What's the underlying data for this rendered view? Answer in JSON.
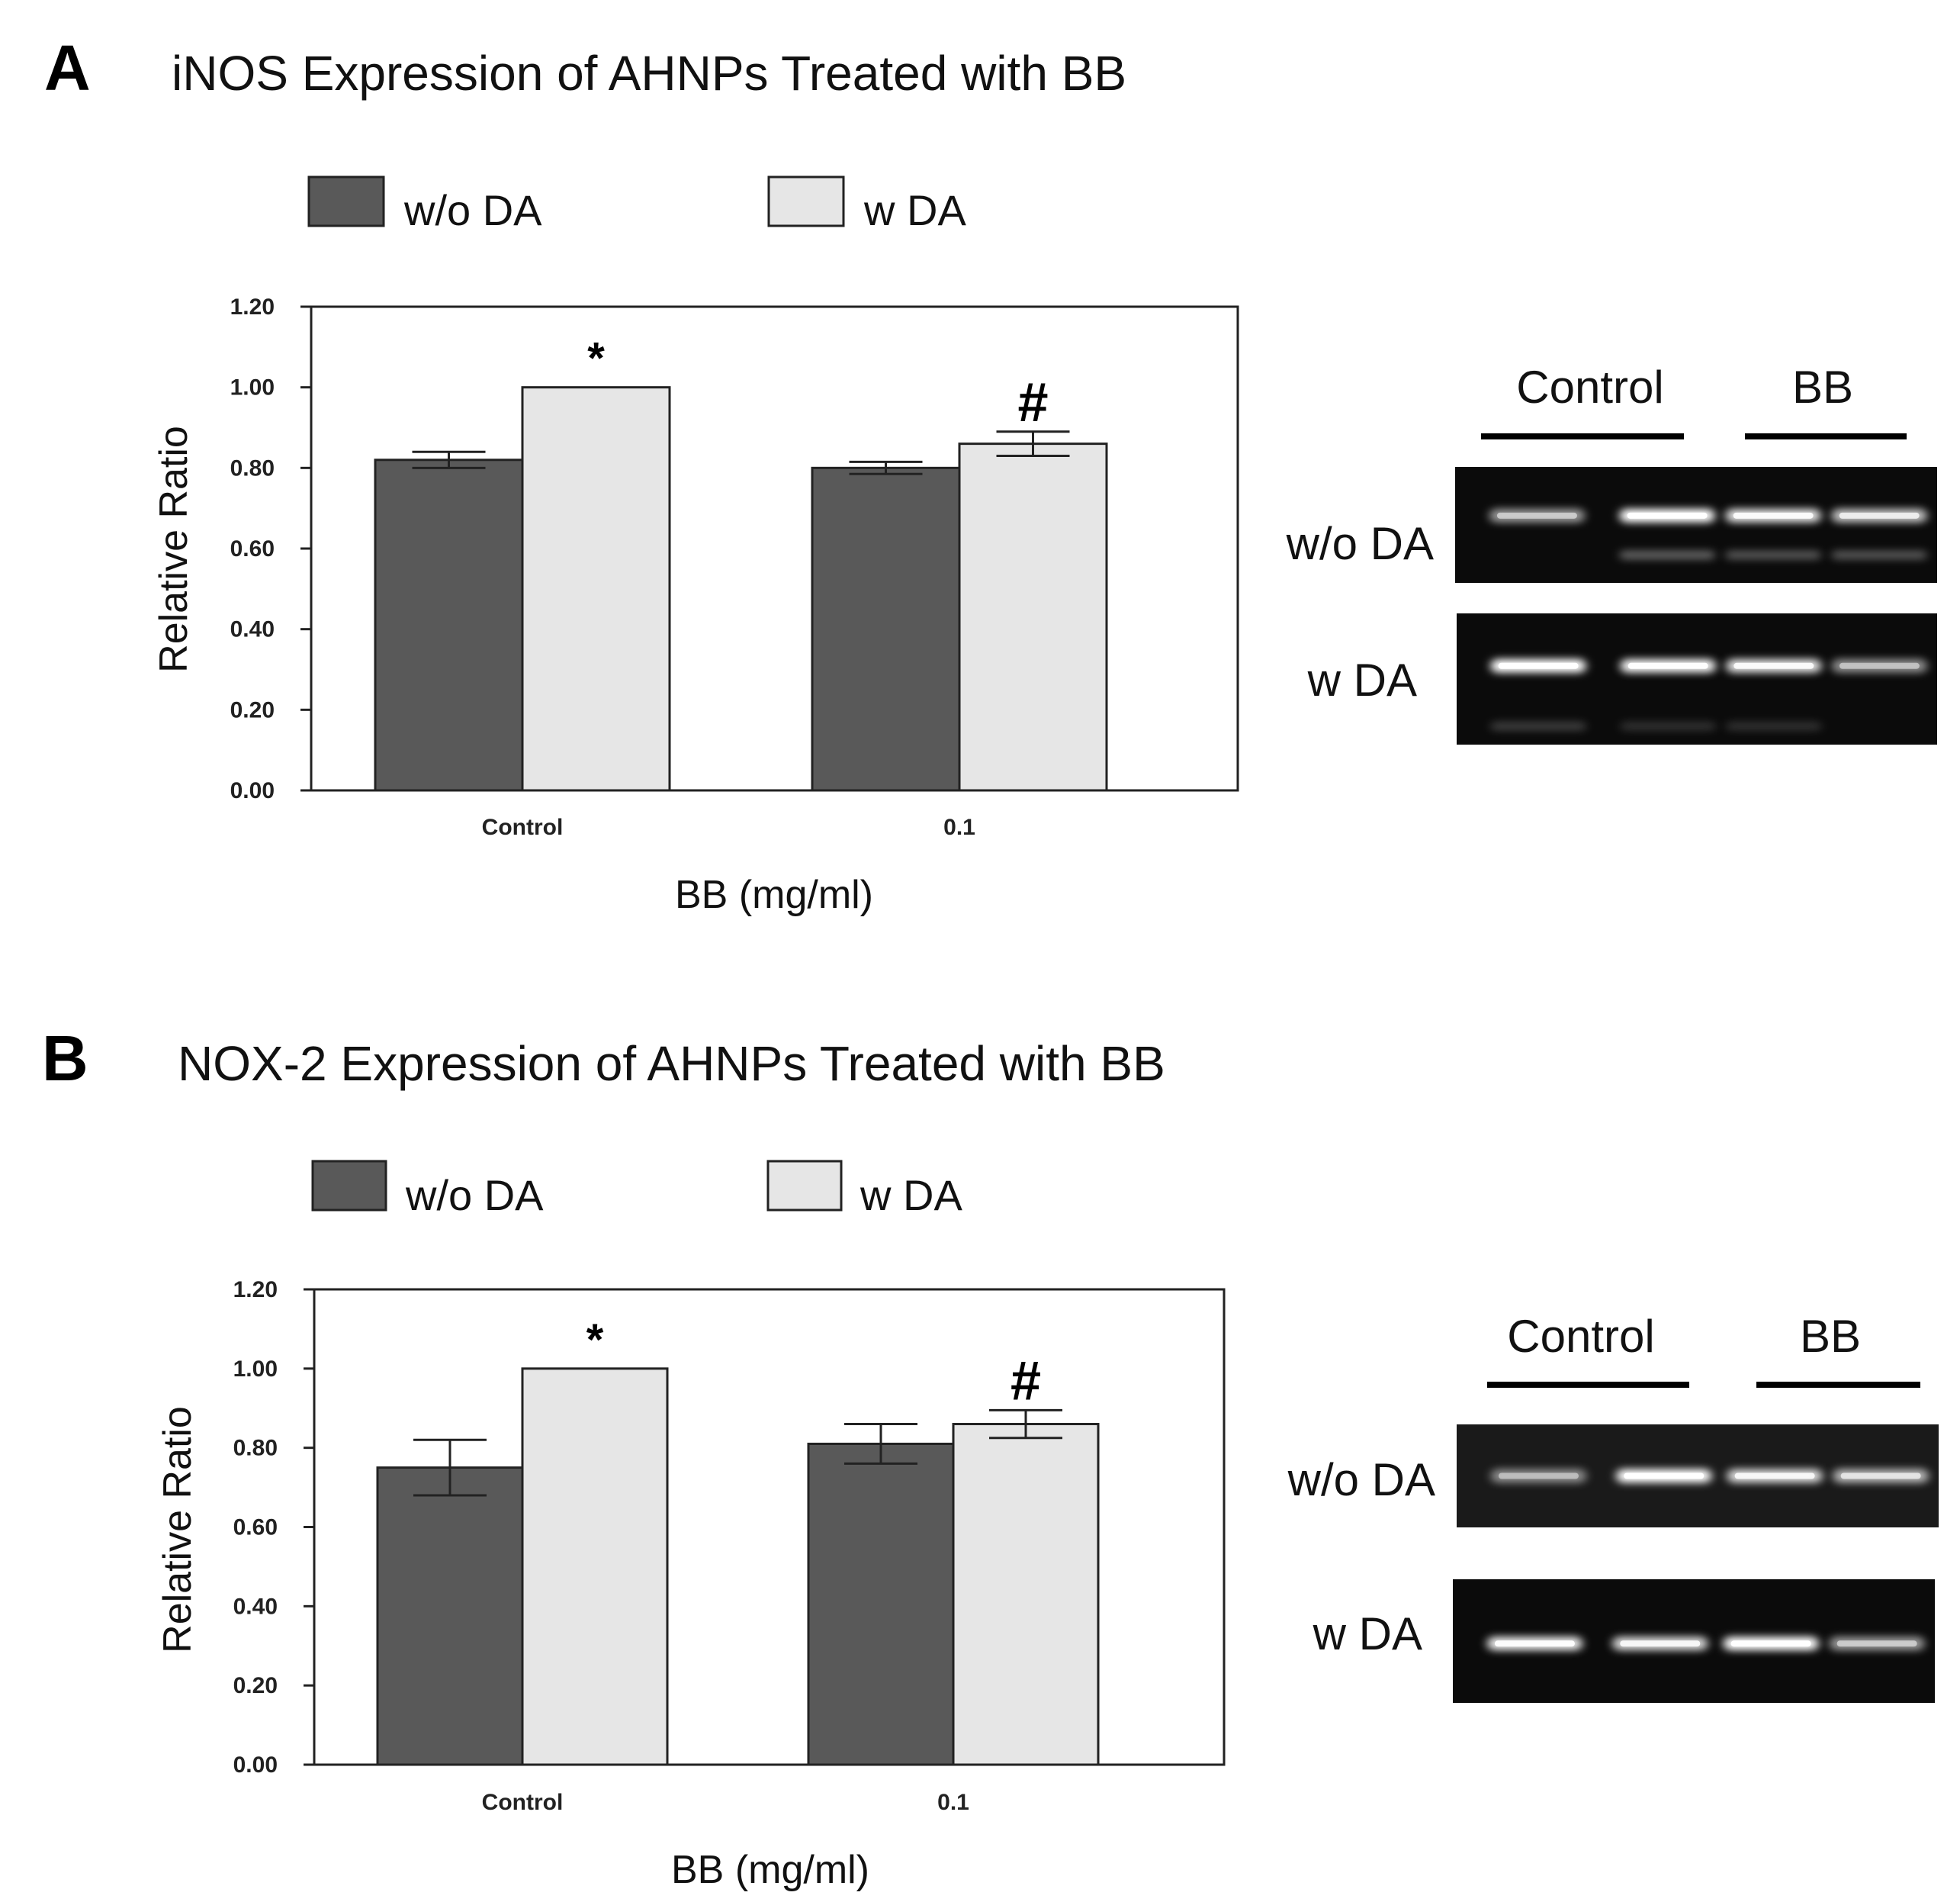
{
  "colors": {
    "without_da": "#595959",
    "with_da": "#e6e6e6",
    "axis": "#222222",
    "gel_background": "#0b0b0b",
    "gel_band": "#ffffff"
  },
  "chart_data": [
    {
      "type": "bar",
      "panel": "A",
      "title": "iNOS Expression of AHNPs Treated with BB",
      "xlabel": "BB (mg/ml)",
      "ylabel": "Relative Ratio",
      "ylim": [
        0,
        1.2
      ],
      "yticks": [
        "0.00",
        "0.20",
        "0.40",
        "0.60",
        "0.80",
        "1.00",
        "1.20"
      ],
      "ytick_values": [
        0,
        0.2,
        0.4,
        0.6,
        0.8,
        1.0,
        1.2
      ],
      "categories": [
        "Control",
        "0.1"
      ],
      "legend_position": "top",
      "grid": false,
      "series": [
        {
          "name": "w/o DA",
          "values": [
            0.82,
            0.8
          ],
          "errors": [
            0.02,
            0.015
          ],
          "marks": [
            "",
            ""
          ]
        },
        {
          "name": "w DA",
          "values": [
            1.0,
            0.86
          ],
          "errors": [
            0.0,
            0.03
          ],
          "marks": [
            "*",
            "#"
          ]
        }
      ],
      "gel": {
        "header_left": "Control",
        "header_right": "BB",
        "rows": [
          {
            "label": "w/o DA",
            "bands": [
              0.45,
              1.0,
              0.85,
              0.7
            ],
            "secondary": [
              0.0,
              0.35,
              0.3,
              0.3
            ]
          },
          {
            "label": "w DA",
            "bands": [
              1.0,
              0.95,
              0.85,
              0.4
            ],
            "secondary": [
              0.2,
              0.15,
              0.15,
              0.0
            ]
          }
        ]
      }
    },
    {
      "type": "bar",
      "panel": "B",
      "title": "NOX-2 Expression of AHNPs Treated with BB",
      "xlabel": "BB (mg/ml)",
      "ylabel": "Relative Ratio",
      "ylim": [
        0,
        1.2
      ],
      "yticks": [
        "0.00",
        "0.20",
        "0.40",
        "0.60",
        "0.80",
        "1.00",
        "1.20"
      ],
      "ytick_values": [
        0,
        0.2,
        0.4,
        0.6,
        0.8,
        1.0,
        1.2
      ],
      "categories": [
        "Control",
        "0.1"
      ],
      "legend_position": "top",
      "grid": false,
      "series": [
        {
          "name": "w/o DA",
          "values": [
            0.75,
            0.81
          ],
          "errors": [
            0.07,
            0.05
          ],
          "marks": [
            "",
            ""
          ]
        },
        {
          "name": "w DA",
          "values": [
            1.0,
            0.86
          ],
          "errors": [
            0.0,
            0.035
          ],
          "marks": [
            "*",
            "#"
          ]
        }
      ],
      "gel": {
        "header_left": "Control",
        "header_right": "BB",
        "rows": [
          {
            "label": "w/o DA",
            "bands": [
              0.35,
              1.0,
              0.8,
              0.6
            ],
            "secondary": [
              0,
              0,
              0,
              0
            ]
          },
          {
            "label": "w DA",
            "bands": [
              0.9,
              0.8,
              1.0,
              0.45
            ],
            "secondary": [
              0,
              0,
              0,
              0
            ]
          }
        ]
      }
    }
  ]
}
